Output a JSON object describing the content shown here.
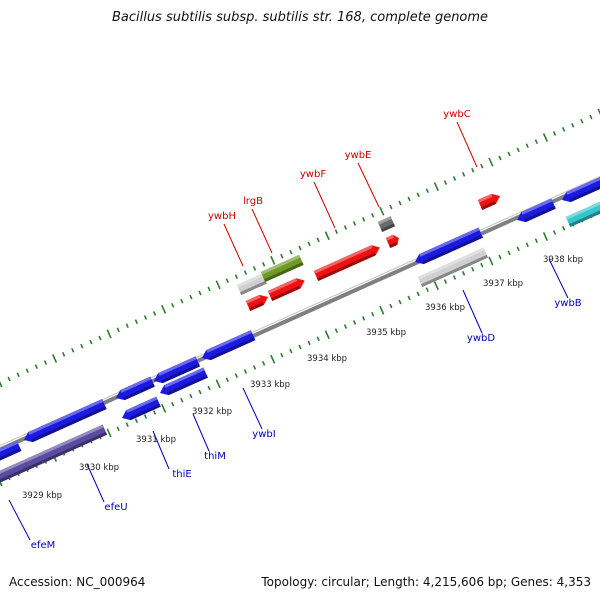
{
  "title": "Bacillus subtilis subsp. subtilis str. 168, complete genome",
  "footer": {
    "accession": "Accession: NC_000964",
    "topology": "Topology: circular; Length: 4,215,606 bp; Genes: 4,353"
  },
  "colors": {
    "forward_gene": "#ee1111",
    "reverse_gene": "#1a1ae0",
    "rna": "#33c6cc",
    "rrna": "#5a4aa0",
    "pseudo": "#cfcfcf",
    "misc_green": "#6e9a28",
    "misc_gray": "#6a6a6a",
    "backbone": "#8a8a8a",
    "ticks": "#2e7d2e",
    "label_forward": "#cc0000",
    "label_reverse": "#0000bb"
  },
  "kbp_labels": [
    "3929 kbp",
    "3930 kbp",
    "3931 kbp",
    "3932 kbp",
    "3933 kbp",
    "3934 kbp",
    "3935 kbp",
    "3936 kbp",
    "3937 kbp",
    "3938 kbp"
  ],
  "upper_gene_labels": [
    "ywbH",
    "lrgB",
    "ywbF",
    "ywbE",
    "ywbC"
  ],
  "lower_gene_labels": [
    "efeM",
    "efeU",
    "thiE",
    "thiM",
    "ywbI",
    "ywbD",
    "ywbB"
  ]
}
